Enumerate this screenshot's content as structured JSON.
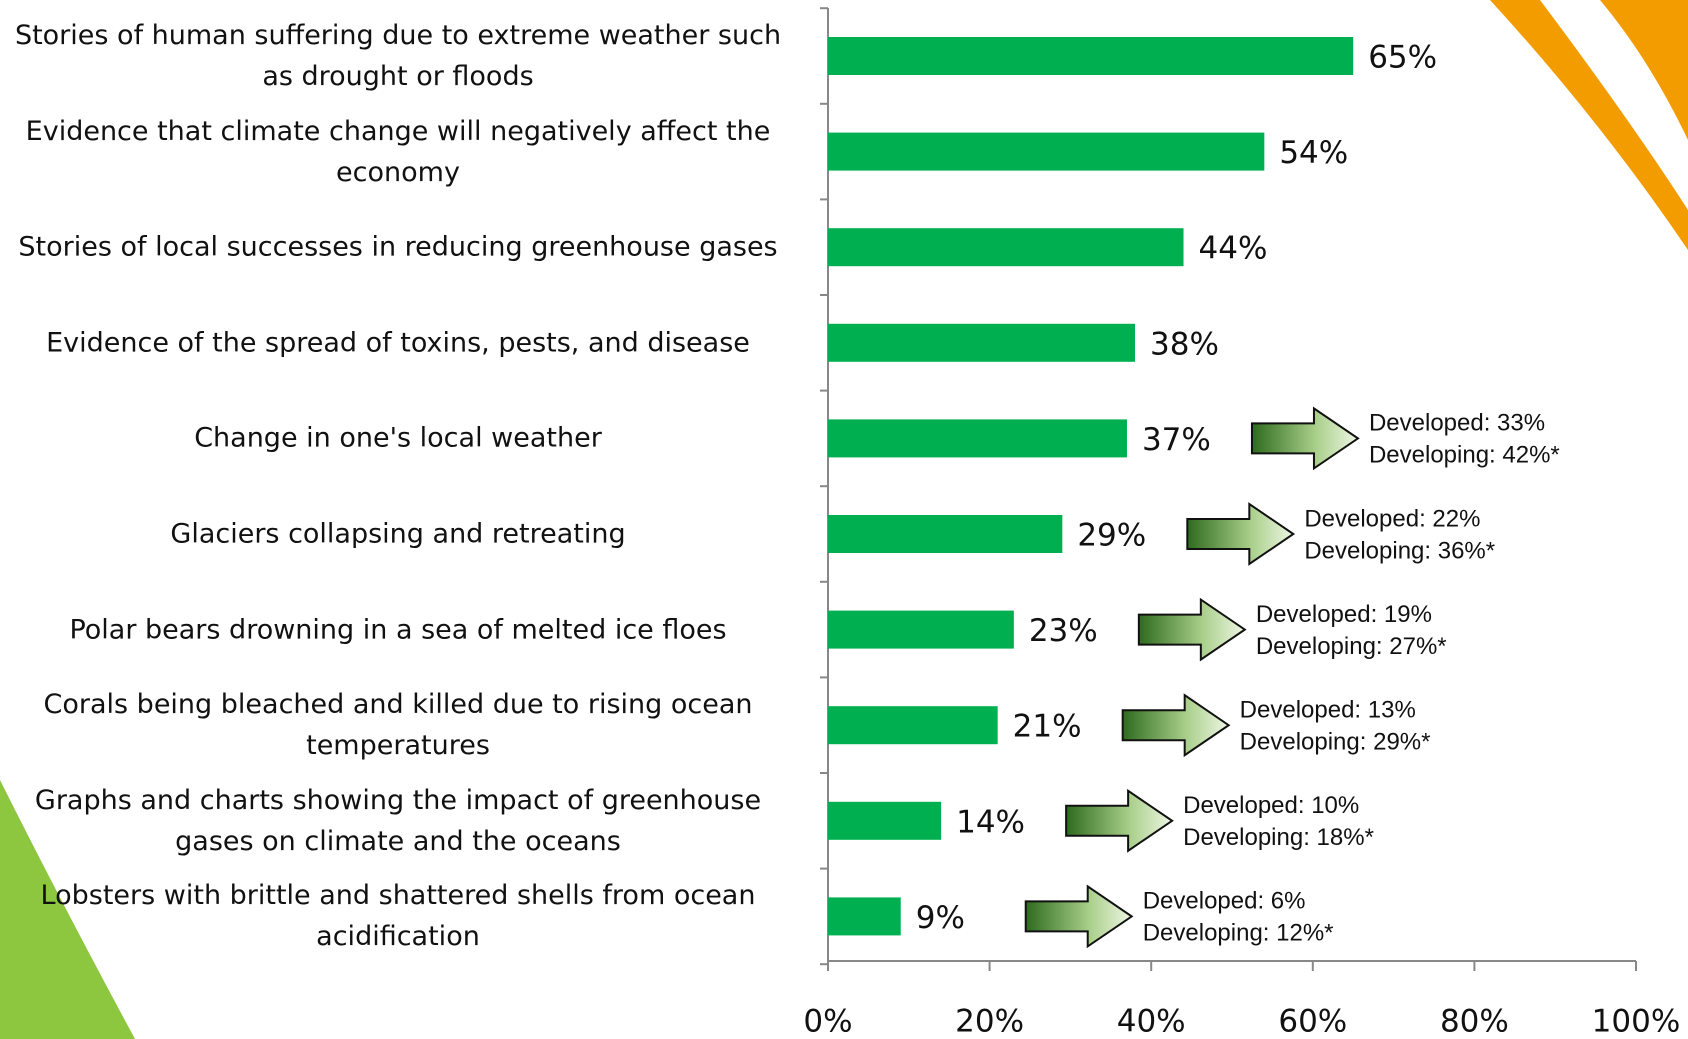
{
  "chart_data": {
    "type": "bar",
    "orientation": "horizontal",
    "categories": [
      "Stories of human suffering due to extreme weather such as drought or floods",
      "Evidence that climate change will negatively affect the economy",
      "Stories of local successes in reducing greenhouse gases",
      "Evidence of the spread of toxins, pests, and disease",
      "Change in one's local weather",
      "Glaciers collapsing and retreating",
      "Polar bears drowning in a sea of melted ice floes",
      "Corals being bleached and killed due to rising ocean temperatures",
      "Graphs and charts showing the impact of greenhouse gases on climate and the oceans",
      "Lobsters with brittle and shattered shells from ocean acidification"
    ],
    "values": [
      65,
      54,
      44,
      38,
      37,
      29,
      23,
      21,
      14,
      9
    ],
    "value_labels": [
      "65%",
      "54%",
      "44%",
      "38%",
      "37%",
      "29%",
      "23%",
      "21%",
      "14%",
      "9%"
    ],
    "notes": [
      null,
      null,
      null,
      null,
      [
        "Developed: 33%",
        "Developing: 42%*"
      ],
      [
        "Developed: 22%",
        "Developing: 36%*"
      ],
      [
        "Developed: 19%",
        "Developing: 27%*"
      ],
      [
        "Developed: 13%",
        "Developing: 29%*"
      ],
      [
        "Developed: 10%",
        "Developing: 18%*"
      ],
      [
        "Developed: 6%",
        "Developing: 12%*"
      ]
    ],
    "color": "#00b050",
    "xlim": [
      0,
      100
    ],
    "xticks": [
      {
        "value": 0,
        "label": "0%"
      },
      {
        "value": 20,
        "label": "20%"
      },
      {
        "value": 40,
        "label": "40%"
      },
      {
        "value": 60,
        "label": "60%"
      },
      {
        "value": 80,
        "label": "80%"
      },
      {
        "value": 100,
        "label": "100%"
      }
    ]
  }
}
